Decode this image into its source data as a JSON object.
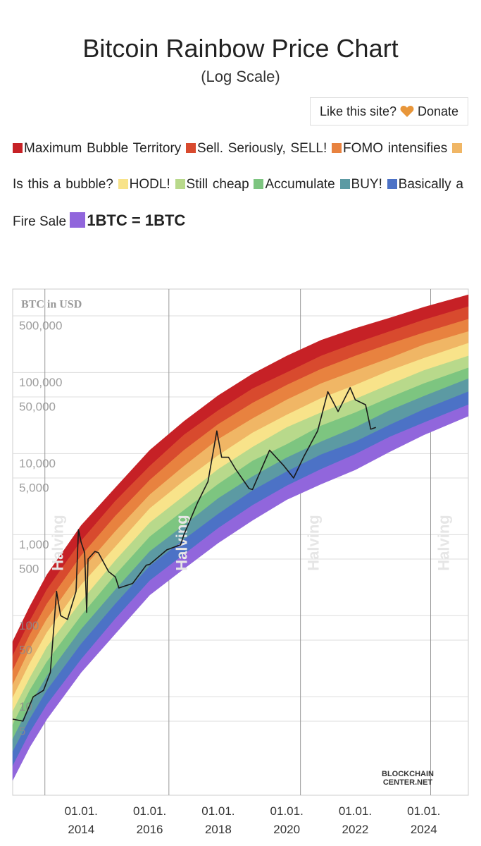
{
  "title": "Bitcoin Rainbow Price Chart",
  "subtitle": "(Log Scale)",
  "donate": {
    "text": "Like this site?",
    "label": "Donate"
  },
  "chart_data": {
    "type": "rainbow",
    "y_label": "BTC in USD",
    "log_y": true,
    "ylim": [
      0.61,
      1070000
    ],
    "xlim": [
      2012,
      2025.3
    ],
    "yticks": [
      5,
      10,
      50,
      100,
      500,
      {
        "value": 1000,
        "label": "1,000"
      },
      {
        "value": 5000,
        "label": "5,000"
      },
      {
        "value": 10000,
        "label": "10,000"
      },
      {
        "value": 50000,
        "label": "50,000"
      },
      {
        "value": 100000,
        "label": "100,000"
      },
      {
        "value": 500000,
        "label": "500,000"
      }
    ],
    "xticks": [
      {
        "value": 2014,
        "label": "01.01.\n2014"
      },
      {
        "value": 2016,
        "label": "01.01.\n2016"
      },
      {
        "value": 2018,
        "label": "01.01.\n2018"
      },
      {
        "value": 2020,
        "label": "01.01.\n2020"
      },
      {
        "value": 2022,
        "label": "01.01.\n2022"
      },
      {
        "value": 2024,
        "label": "01.01.\n2024"
      }
    ],
    "halvings": {
      "x": [
        2012.94,
        2016.56,
        2020.4,
        2024.2
      ],
      "label": "Halving"
    },
    "bands": {
      "x": [
        2012,
        2012.5,
        2013,
        2014,
        2015,
        2016,
        2017,
        2018,
        2019,
        2020,
        2021,
        2022,
        2023,
        2024,
        2025.3
      ],
      "series": [
        {
          "name": "Maximum Bubble Territory",
          "color": "#c62126",
          "values": [
            48,
            130,
            320,
            1300,
            3800,
            11000,
            25000,
            52000,
            96000,
            160000,
            250000,
            350000,
            470000,
            640000,
            910000
          ]
        },
        {
          "name": "Sell. Seriously, SELL!",
          "color": "#d84a2e",
          "values": [
            32,
            86,
            210,
            840,
            2600,
            7000,
            17000,
            34000,
            63000,
            100000,
            160000,
            230000,
            320000,
            445000,
            650000
          ]
        },
        {
          "name": "FOMO intensifies",
          "color": "#e8823f",
          "values": [
            21,
            58,
            140,
            550,
            1700,
            4700,
            11000,
            23000,
            42000,
            70000,
            110000,
            160000,
            225000,
            310000,
            455000
          ]
        },
        {
          "name": "Is this a bubble?",
          "color": "#f0b665",
          "values": [
            14,
            39,
            91,
            360,
            1100,
            3100,
            7000,
            15000,
            27000,
            46000,
            73000,
            105000,
            150000,
            220000,
            320000
          ]
        },
        {
          "name": "HODL!",
          "color": "#f8e38a",
          "values": [
            9.7,
            26,
            62,
            240,
            710,
            2100,
            4600,
            9500,
            18000,
            30000,
            48000,
            70000,
            105000,
            150000,
            230000
          ]
        },
        {
          "name": "Still cheap",
          "color": "#b8d98b",
          "values": [
            6.6,
            17,
            41,
            150,
            480,
            1400,
            3000,
            6400,
            12000,
            21000,
            32000,
            47000,
            71000,
            106000,
            160000
          ]
        },
        {
          "name": "Accumulate",
          "color": "#7dc580",
          "values": [
            4.5,
            12,
            27,
            100,
            320,
            940,
            2000,
            4200,
            8100,
            13000,
            22000,
            32000,
            49000,
            73000,
            114000
          ]
        },
        {
          "name": "BUY!",
          "color": "#5c9aa3",
          "values": [
            3.0,
            7.9,
            18,
            68,
            210,
            620,
            1300,
            2800,
            5200,
            8900,
            14000,
            21000,
            34000,
            51000,
            84000
          ]
        },
        {
          "name": "Basically a Fire Sale",
          "color": "#4c72c6",
          "values": [
            2.1,
            5.3,
            12,
            45,
            140,
            410,
            870,
            1800,
            3500,
            6000,
            9700,
            14000,
            22500,
            35000,
            58000
          ]
        },
        {
          "name": "1BTC = 1BTC",
          "color": "#9166dc",
          "values": [
            1.4,
            3.6,
            8.0,
            29,
            92,
            270,
            570,
            1200,
            2300,
            4000,
            6400,
            9800,
            16000,
            24000,
            40000
          ]
        }
      ],
      "floor": [
        0.93,
        2.4,
        5.3,
        20,
        60,
        180,
        380,
        790,
        1500,
        2700,
        4200,
        6300,
        10500,
        17000,
        29000
      ]
    },
    "price": {
      "color": "#1a1a1a",
      "x": [
        2012.0,
        2012.3,
        2012.6,
        2012.9,
        2013.1,
        2013.28,
        2013.4,
        2013.6,
        2013.85,
        2013.92,
        2014.0,
        2014.1,
        2014.16,
        2014.2,
        2014.4,
        2014.5,
        2014.8,
        2015.0,
        2015.1,
        2015.5,
        2015.9,
        2016.0,
        2016.5,
        2016.9,
        2017.0,
        2017.4,
        2017.7,
        2017.96,
        2018.1,
        2018.3,
        2018.5,
        2018.9,
        2019.0,
        2019.5,
        2019.9,
        2020.2,
        2020.5,
        2020.9,
        2021.2,
        2021.5,
        2021.85,
        2022.0,
        2022.3,
        2022.45,
        2022.6
      ],
      "values": [
        5.3,
        5,
        10,
        12,
        20,
        200,
        100,
        90,
        200,
        1150,
        800,
        600,
        110,
        500,
        620,
        600,
        350,
        300,
        220,
        250,
        420,
        430,
        650,
        750,
        1000,
        2500,
        4500,
        19000,
        9000,
        9000,
        6500,
        3700,
        3600,
        11000,
        7200,
        5000,
        9200,
        19000,
        58000,
        33000,
        65000,
        46000,
        40000,
        20000,
        21000
      ]
    },
    "watermark": [
      "BLOCKCHAIN",
      "CENTER.NET"
    ]
  }
}
